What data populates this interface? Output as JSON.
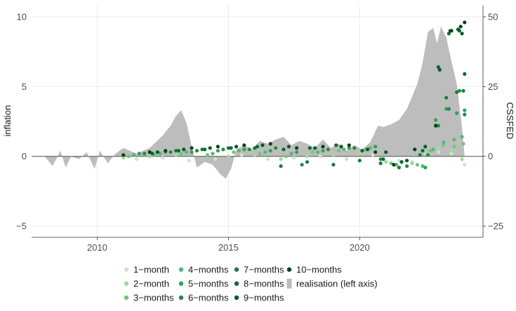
{
  "chart_data": {
    "type": "scatter",
    "title": "",
    "xlabel": "",
    "ylabel": "inflation",
    "y2label": "CSSFED",
    "xlim": [
      2007.5,
      2024.7
    ],
    "ylim": [
      -5.8,
      10.8
    ],
    "y2lim": [
      -29,
      54
    ],
    "x_ticks": [
      2010,
      2015,
      2020
    ],
    "x_tick_labels": [
      "2010",
      "2015",
      "2020"
    ],
    "y_ticks": [
      -5,
      0,
      5,
      10
    ],
    "y_tick_labels": [
      "−5",
      "0",
      "5",
      "10"
    ],
    "y2_ticks": [
      -25,
      0,
      25,
      50
    ],
    "y2_tick_labels": [
      "−25",
      "0",
      "25",
      "50"
    ],
    "grid": true,
    "legend_position": "bottom",
    "legend": [
      {
        "label": "1−month",
        "color": "#c7e9c0",
        "shape": "point"
      },
      {
        "label": "2−month",
        "color": "#a1d99b",
        "shape": "point"
      },
      {
        "label": "3−months",
        "color": "#74c476",
        "shape": "point"
      },
      {
        "label": "4−months",
        "color": "#55b67e",
        "shape": "point"
      },
      {
        "label": "5−months",
        "color": "#31a354",
        "shape": "point"
      },
      {
        "label": "6−months",
        "color": "#238b45",
        "shape": "point"
      },
      {
        "label": "7−months",
        "color": "#1b7a3a",
        "shape": "point"
      },
      {
        "label": "8−months",
        "color": "#006d2c",
        "shape": "point"
      },
      {
        "label": "9−months",
        "color": "#005a24",
        "shape": "point"
      },
      {
        "label": "10−months",
        "color": "#00441b",
        "shape": "point"
      },
      {
        "label": "realisation (left axis)",
        "color": "#bdbdbd",
        "shape": "bar"
      }
    ],
    "realisation": {
      "name": "realisation (left axis)",
      "axis": "left",
      "x": [
        2008.0,
        2008.3,
        2008.6,
        2008.8,
        2009.0,
        2009.3,
        2009.6,
        2009.9,
        2010.1,
        2010.4,
        2010.7,
        2011.0,
        2011.5,
        2012.0,
        2012.5,
        2012.8,
        2013.0,
        2013.2,
        2013.4,
        2013.6,
        2013.8,
        2014.1,
        2014.4,
        2014.7,
        2014.9,
        2015.1,
        2015.3,
        2015.6,
        2015.9,
        2016.2,
        2016.5,
        2016.8,
        2017.1,
        2017.4,
        2017.7,
        2018.0,
        2018.3,
        2018.6,
        2018.9,
        2019.2,
        2019.5,
        2019.8,
        2020.1,
        2020.4,
        2020.7,
        2020.9,
        2021.2,
        2021.5,
        2021.8,
        2022.0,
        2022.2,
        2022.4,
        2022.6,
        2022.8,
        2022.95,
        2023.1,
        2023.3,
        2023.5,
        2023.7,
        2023.9,
        2024.0
      ],
      "y": [
        0.0,
        -0.7,
        0.4,
        -0.8,
        0.0,
        -0.2,
        0.3,
        -0.9,
        0.4,
        -0.5,
        0.2,
        0.6,
        0.2,
        0.6,
        1.5,
        2.2,
        2.9,
        3.3,
        2.4,
        0.7,
        -0.8,
        -0.4,
        -0.6,
        -1.3,
        -1.6,
        -0.9,
        0.5,
        0.8,
        0.5,
        1.1,
        0.9,
        1.2,
        1.4,
        0.8,
        1.1,
        0.9,
        0.6,
        1.2,
        0.6,
        0.9,
        0.4,
        0.8,
        0.5,
        1.0,
        2.2,
        2.1,
        2.3,
        2.6,
        3.4,
        4.3,
        5.2,
        6.7,
        8.9,
        9.2,
        8.1,
        9.3,
        8.5,
        6.8,
        5.2,
        2.1,
        0.0
      ]
    },
    "series": [
      {
        "name": "1−month",
        "color": "#c7e9c0",
        "x": [
          2011.5,
          2012.5,
          2013.5,
          2014.5,
          2015.5,
          2016.5,
          2017.5,
          2018.5,
          2019.5,
          2020.5,
          2021.5,
          2022.0,
          2022.5,
          2023.0,
          2023.5,
          2024.0
        ],
        "y": [
          -0.2,
          -0.1,
          -0.3,
          -0.2,
          0.1,
          -0.2,
          -0.1,
          0.0,
          -0.2,
          0.1,
          -0.3,
          -0.4,
          0.2,
          0.3,
          0.2,
          -0.6
        ]
      },
      {
        "name": "2−month",
        "color": "#a1d99b",
        "x": [
          2011.0,
          2012.0,
          2013.0,
          2014.0,
          2015.0,
          2016.0,
          2017.0,
          2018.0,
          2019.0,
          2020.0,
          2021.0,
          2022.0,
          2022.5,
          2023.0,
          2023.5,
          2023.9
        ],
        "y": [
          -0.1,
          0.0,
          0.1,
          -0.2,
          0.0,
          0.1,
          -0.2,
          0.0,
          0.1,
          0.2,
          -0.4,
          -0.5,
          0.3,
          0.6,
          0.4,
          -0.2
        ]
      },
      {
        "name": "3−months",
        "color": "#74c476",
        "x": [
          2011.2,
          2012.2,
          2013.2,
          2014.2,
          2015.2,
          2016.2,
          2017.2,
          2018.2,
          2019.2,
          2020.2,
          2021.2,
          2022.2,
          2022.7,
          2023.2,
          2023.6,
          2023.95
        ],
        "y": [
          0.0,
          0.1,
          0.2,
          0.1,
          0.3,
          0.2,
          0.0,
          0.3,
          0.4,
          0.5,
          -0.5,
          -0.6,
          0.4,
          0.8,
          0.7,
          0.9
        ]
      },
      {
        "name": "4−months",
        "color": "#55b67e",
        "x": [
          2011.4,
          2012.4,
          2013.4,
          2014.4,
          2015.4,
          2016.4,
          2017.4,
          2018.4,
          2019.4,
          2020.4,
          2021.4,
          2022.4,
          2022.8,
          2023.2,
          2023.6,
          2023.9
        ],
        "y": [
          0.1,
          0.2,
          0.3,
          0.2,
          0.4,
          0.3,
          0.2,
          0.3,
          0.5,
          0.6,
          -0.6,
          -0.7,
          0.5,
          1.0,
          1.2,
          1.4
        ]
      },
      {
        "name": "5−months",
        "color": "#31a354",
        "x": [
          2011.6,
          2012.6,
          2013.6,
          2014.6,
          2015.6,
          2016.6,
          2017.6,
          2018.6,
          2019.6,
          2020.6,
          2021.6,
          2022.5,
          2022.9,
          2023.3,
          2023.7,
          2024.0
        ],
        "y": [
          0.2,
          0.3,
          0.3,
          0.4,
          0.5,
          0.4,
          0.3,
          0.4,
          0.6,
          0.7,
          -0.4,
          -0.8,
          2.6,
          3.4,
          3.1,
          3.3
        ]
      },
      {
        "name": "6−months",
        "color": "#238b45",
        "x": [
          2011.8,
          2012.8,
          2013.8,
          2014.8,
          2015.8,
          2016.8,
          2017.8,
          2018.8,
          2019.8,
          2020.8,
          2021.8,
          2022.6,
          2023.0,
          2023.4,
          2023.8,
          2024.0
        ],
        "y": [
          0.2,
          0.3,
          0.4,
          0.5,
          0.5,
          0.6,
          -0.6,
          0.5,
          0.6,
          -0.2,
          -0.7,
          0.1,
          2.2,
          3.4,
          4.7,
          3.0
        ]
      },
      {
        "name": "7−months",
        "color": "#1b7a3a",
        "x": [
          2012.0,
          2013.0,
          2014.0,
          2015.0,
          2016.0,
          2017.0,
          2018.0,
          2019.0,
          2020.0,
          2020.8,
          2021.5,
          2022.3,
          2022.9,
          2023.3,
          2023.7,
          2023.95
        ],
        "y": [
          0.3,
          0.4,
          0.5,
          0.6,
          0.6,
          -0.7,
          -0.4,
          -0.6,
          -0.3,
          -0.5,
          -0.8,
          0.1,
          2.2,
          4.2,
          4.6,
          4.7
        ]
      },
      {
        "name": "8−months",
        "color": "#006d2c",
        "x": [
          2012.1,
          2013.1,
          2014.1,
          2015.1,
          2016.1,
          2017.1,
          2018.1,
          2019.1,
          2020.1,
          2020.9,
          2021.6,
          2022.4,
          2023.0,
          2023.4,
          2023.8,
          2024.0
        ],
        "y": [
          0.2,
          0.4,
          0.5,
          0.6,
          0.7,
          0.5,
          0.6,
          0.8,
          0.4,
          -0.2,
          -0.4,
          0.4,
          6.4,
          8.8,
          9.0,
          5.9
        ]
      },
      {
        "name": "9−months",
        "color": "#005a24",
        "x": [
          2012.3,
          2013.3,
          2014.3,
          2015.3,
          2016.3,
          2017.3,
          2018.3,
          2019.3,
          2020.3,
          2021.0,
          2021.8,
          2022.5,
          2023.05,
          2023.45,
          2023.75,
          2023.9
        ],
        "y": [
          0.3,
          0.5,
          0.6,
          0.7,
          0.8,
          0.7,
          0.6,
          0.7,
          0.5,
          0.3,
          -0.3,
          0.7,
          6.2,
          9.0,
          9.1,
          8.8
        ]
      },
      {
        "name": "10−months",
        "color": "#00441b",
        "x": [
          2011.0,
          2012.0,
          2012.6,
          2013.6,
          2014.6,
          2015.6,
          2016.6,
          2017.6,
          2018.6,
          2019.6,
          2020.6,
          2021.3,
          2022.1,
          2022.9,
          2023.5,
          2023.85,
          2024.0
        ],
        "y": [
          0.1,
          0.3,
          0.4,
          0.6,
          0.7,
          0.8,
          0.9,
          0.6,
          0.7,
          0.8,
          0.3,
          -0.6,
          0.5,
          2.2,
          9.0,
          9.3,
          9.6
        ]
      }
    ]
  }
}
